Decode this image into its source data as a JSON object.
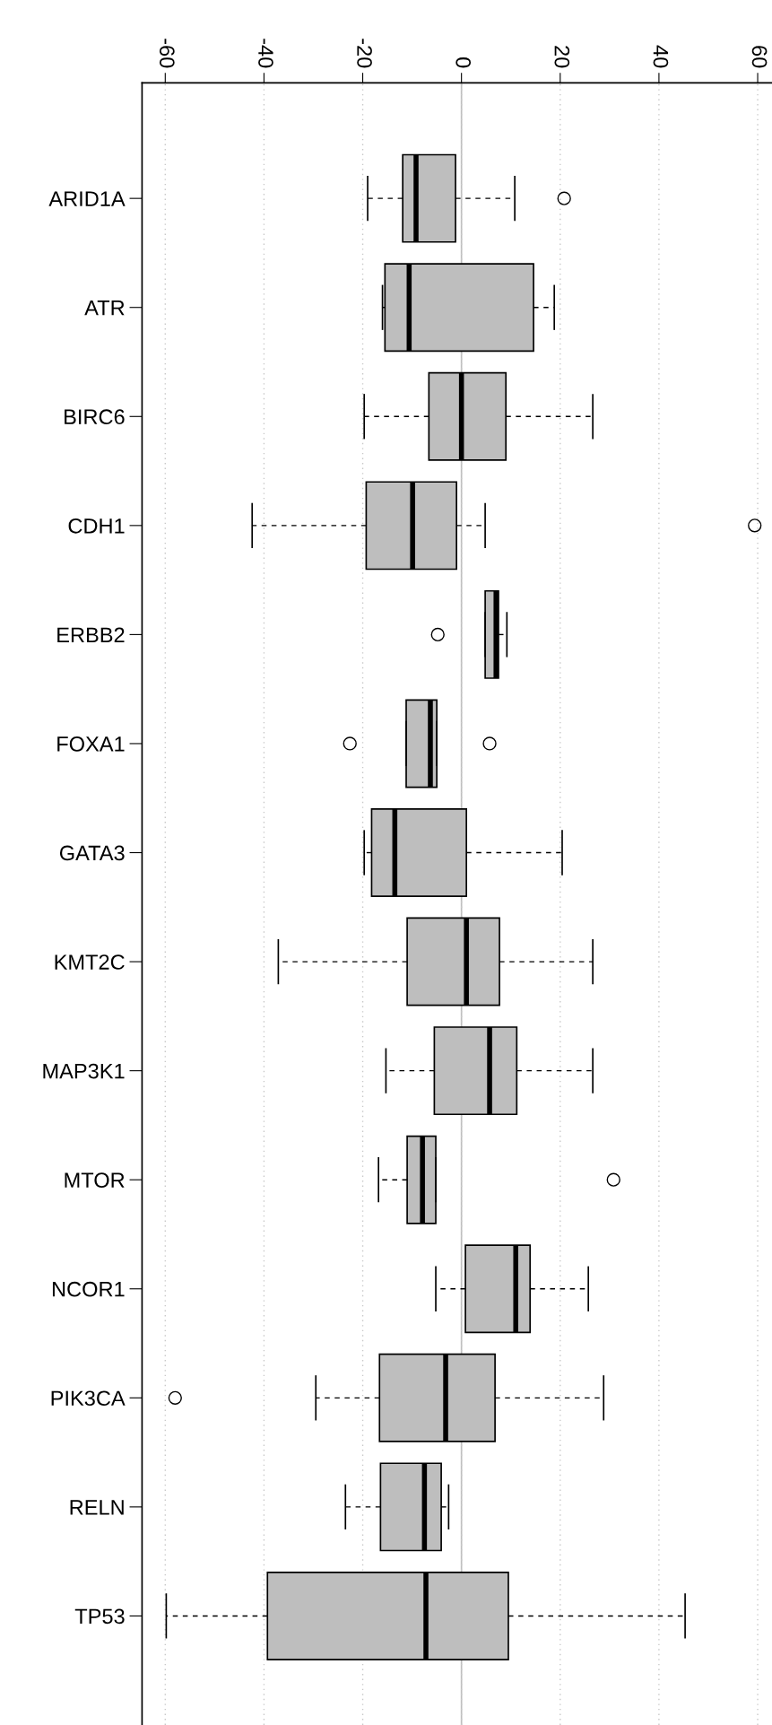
{
  "chart_data": {
    "type": "box",
    "orientation": "horizontal",
    "categories": [
      "ARID1A",
      "ATR",
      "BIRC6",
      "CDH1",
      "ERBB2",
      "FOXA1",
      "GATA3",
      "KMT2C",
      "MAP3K1",
      "MTOR",
      "NCOR1",
      "PIK3CA",
      "RELN",
      "TP53"
    ],
    "boxes": [
      {
        "low": -19,
        "q1": -11.9,
        "median": -9.2,
        "q3": -1.2,
        "high": 10.8,
        "outliers": [
          20.8
        ]
      },
      {
        "low": -16,
        "q1": -15.5,
        "median": -10.6,
        "q3": 14.6,
        "high": 18.8
      },
      {
        "low": -19.7,
        "q1": -6.6,
        "median": 0,
        "q3": 9,
        "high": 26.6
      },
      {
        "low": -42.4,
        "q1": -19.3,
        "median": -9.9,
        "q3": -1,
        "high": 4.8,
        "outliers": [
          59.4
        ]
      },
      {
        "low": 4.8,
        "q1": 4.8,
        "median": 7,
        "q3": 7.5,
        "high": 9.2,
        "outliers": [
          -4.8
        ]
      },
      {
        "low": -11.2,
        "q1": -11.2,
        "median": -6.3,
        "q3": -5,
        "high": -5,
        "outliers": [
          -22.6,
          5.7
        ]
      },
      {
        "low": -19.7,
        "q1": -18.2,
        "median": -13.5,
        "q3": 1,
        "high": 20.4
      },
      {
        "low": -37.1,
        "q1": -11,
        "median": 1,
        "q3": 7.7,
        "high": 26.6
      },
      {
        "low": -15.3,
        "q1": -5.5,
        "median": 5.7,
        "q3": 11.2,
        "high": 26.6
      },
      {
        "low": -16.8,
        "q1": -11,
        "median": -7.9,
        "q3": -5.2,
        "high": -5.2,
        "outliers": [
          30.8
        ]
      },
      {
        "low": -5.2,
        "q1": 0.8,
        "median": 11,
        "q3": 13.9,
        "high": 25.7
      },
      {
        "low": -29.5,
        "q1": -16.6,
        "median": -3.2,
        "q3": 6.8,
        "high": 28.8,
        "outliers": [
          -58
        ]
      },
      {
        "low": -23.5,
        "q1": -16.4,
        "median": -7.5,
        "q3": -4.1,
        "high": -2.6
      },
      {
        "low": -59.8,
        "q1": -39.3,
        "median": -7.2,
        "q3": 9.5,
        "high": 45.3
      }
    ],
    "color": "#bebebe",
    "xlim": [
      -64.7,
      62.9
    ],
    "xticks": [
      -60,
      -40,
      -20,
      0,
      20,
      40,
      60
    ],
    "grid": "x",
    "ref_lines": [
      {
        "axis": "x",
        "value": 0,
        "color": "#bebebe"
      }
    ]
  }
}
